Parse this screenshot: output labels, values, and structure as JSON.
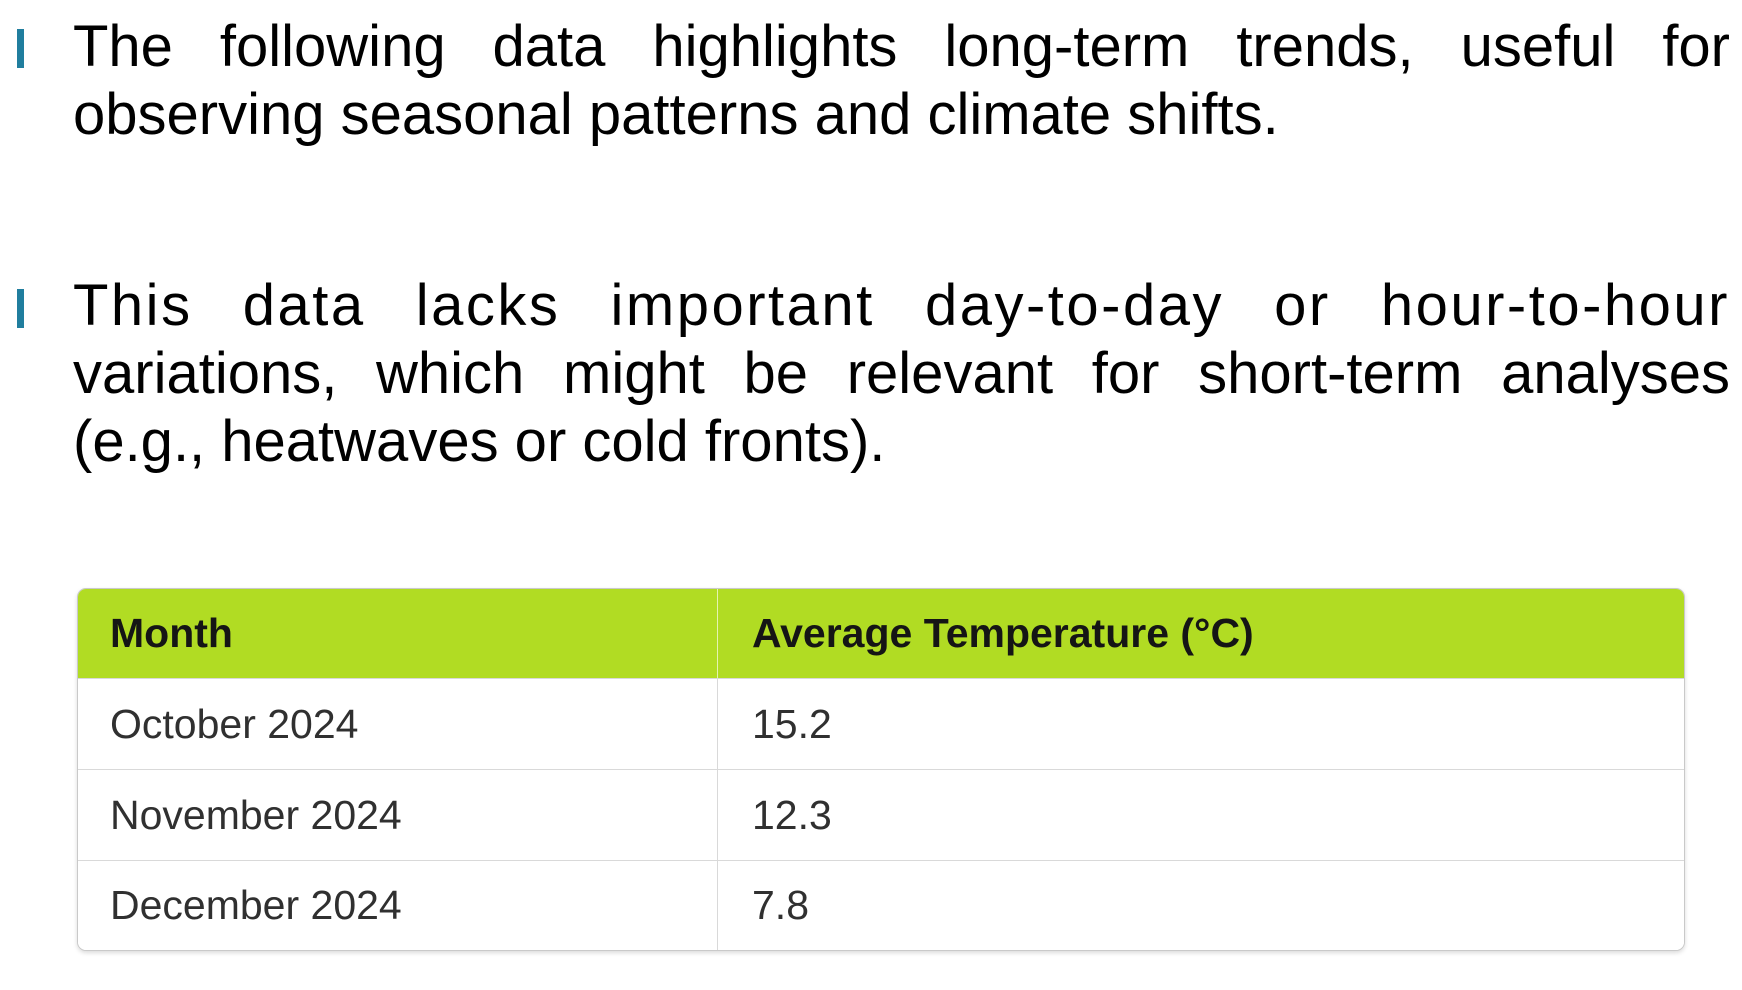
{
  "slide": {
    "bullets": [
      {
        "lines": [
          "The following data highlights long-term trends, useful for",
          "observing seasonal patterns and climate shifts."
        ]
      },
      {
        "lines": [
          "This data lacks important day-to-day or hour-to-hour",
          "variations, which might be relevant for short-term analyses",
          "(e.g., heatwaves or cold fronts)."
        ]
      }
    ]
  },
  "table": {
    "columns": [
      "Month",
      "Average Temperature (°C)"
    ],
    "rows": [
      {
        "month": "October 2024",
        "avg_temp_c": "15.2"
      },
      {
        "month": "November 2024",
        "avg_temp_c": "12.3"
      },
      {
        "month": "December 2024",
        "avg_temp_c": "7.8"
      }
    ]
  },
  "colors": {
    "accent_teal": "#207E9E",
    "header_green": "#B1DC23",
    "table_border": "#C9C9C9",
    "row_divider": "#D9D9D9"
  }
}
